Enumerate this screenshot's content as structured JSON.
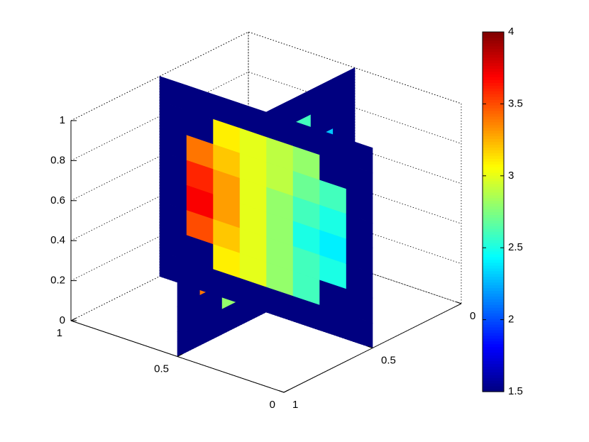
{
  "chart_data": {
    "type": "slice",
    "xlim": [
      0,
      1
    ],
    "xticks": [
      0,
      0.5,
      1
    ],
    "ylim": [
      0,
      1
    ],
    "yticks": [
      0,
      0.5,
      1
    ],
    "zlim": [
      0,
      1
    ],
    "zticks": [
      0,
      0.2,
      0.4,
      0.6,
      0.8,
      1
    ],
    "grid": true,
    "colormap": "jet",
    "clim": [
      1.5,
      4
    ],
    "cticks": [
      1.5,
      2,
      2.5,
      3,
      3.5,
      4
    ],
    "slices": [
      {
        "axis": "x",
        "at": 0.5,
        "values": [
          [
            1.5,
            1.5,
            1.5,
            1.5,
            1.5,
            1.5,
            1.5,
            1.5
          ],
          [
            1.5,
            1.5,
            2.6,
            2.7,
            2.8,
            3.0,
            1.5,
            1.5
          ],
          [
            1.5,
            2.3,
            2.4,
            2.6,
            2.8,
            3.0,
            3.3,
            1.5
          ],
          [
            1.5,
            2.1,
            2.2,
            2.4,
            2.7,
            3.1,
            3.5,
            1.5
          ],
          [
            1.5,
            2.0,
            2.0,
            2.3,
            2.6,
            3.0,
            3.6,
            1.5
          ],
          [
            1.5,
            2.1,
            2.1,
            2.3,
            2.5,
            2.9,
            3.4,
            1.5
          ],
          [
            1.5,
            1.5,
            2.2,
            2.3,
            2.5,
            2.8,
            1.5,
            1.5
          ],
          [
            1.5,
            1.5,
            1.5,
            1.5,
            1.5,
            1.5,
            1.5,
            1.5
          ]
        ]
      },
      {
        "axis": "y",
        "at": 0.5,
        "values": [
          [
            1.5,
            1.5,
            1.5,
            1.5,
            1.5,
            1.5,
            1.5,
            1.5
          ],
          [
            1.5,
            1.5,
            2.8,
            2.9,
            3.0,
            3.1,
            1.5,
            1.5
          ],
          [
            1.5,
            2.6,
            2.7,
            2.9,
            3.0,
            3.2,
            3.4,
            1.5
          ],
          [
            1.5,
            2.5,
            2.6,
            2.8,
            3.0,
            3.3,
            3.6,
            1.5
          ],
          [
            1.5,
            2.4,
            2.5,
            2.8,
            3.0,
            3.3,
            3.7,
            1.5
          ],
          [
            1.5,
            2.5,
            2.6,
            2.8,
            3.0,
            3.2,
            3.5,
            1.5
          ],
          [
            1.5,
            1.5,
            2.6,
            2.8,
            3.0,
            3.1,
            1.5,
            1.5
          ],
          [
            1.5,
            1.5,
            1.5,
            1.5,
            1.5,
            1.5,
            1.5,
            1.5
          ]
        ]
      }
    ]
  }
}
